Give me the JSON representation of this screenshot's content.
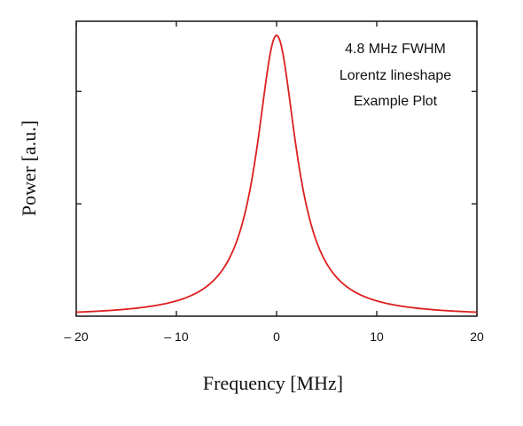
{
  "chart_data": {
    "type": "line",
    "xlabel": "Frequency [MHz]",
    "ylabel": "Power [a.u.]",
    "xlim": [
      -20,
      20
    ],
    "ylim": [
      0,
      1.05
    ],
    "x_ticks": [
      -20,
      -10,
      0,
      10,
      20
    ],
    "x_tick_labels": [
      "– 20",
      "– 10",
      "0",
      "10",
      "20"
    ],
    "y_ticks": [
      0.4,
      0.8
    ],
    "annotation": [
      "4.8 MHz FWHM",
      "Lorentz lineshape",
      "Example Plot"
    ],
    "grid": false,
    "series": [
      {
        "color": "#dd1f1f",
        "lineshape": "lorentzian",
        "center": 0,
        "fwhm": 4.8,
        "peak": 1.0,
        "x": [
          -20,
          -15,
          -10,
          -7.5,
          -5,
          -4,
          -3,
          -2.4,
          -2,
          -1.5,
          -1,
          -0.5,
          0,
          0.5,
          1,
          1.5,
          2,
          2.4,
          3,
          4,
          5,
          7.5,
          10,
          15,
          20
        ],
        "y": [
          0.014,
          0.025,
          0.054,
          0.093,
          0.187,
          0.265,
          0.39,
          0.5,
          0.59,
          0.719,
          0.852,
          0.958,
          1.0,
          0.958,
          0.852,
          0.719,
          0.59,
          0.5,
          0.39,
          0.265,
          0.187,
          0.093,
          0.054,
          0.025,
          0.014
        ]
      }
    ]
  }
}
